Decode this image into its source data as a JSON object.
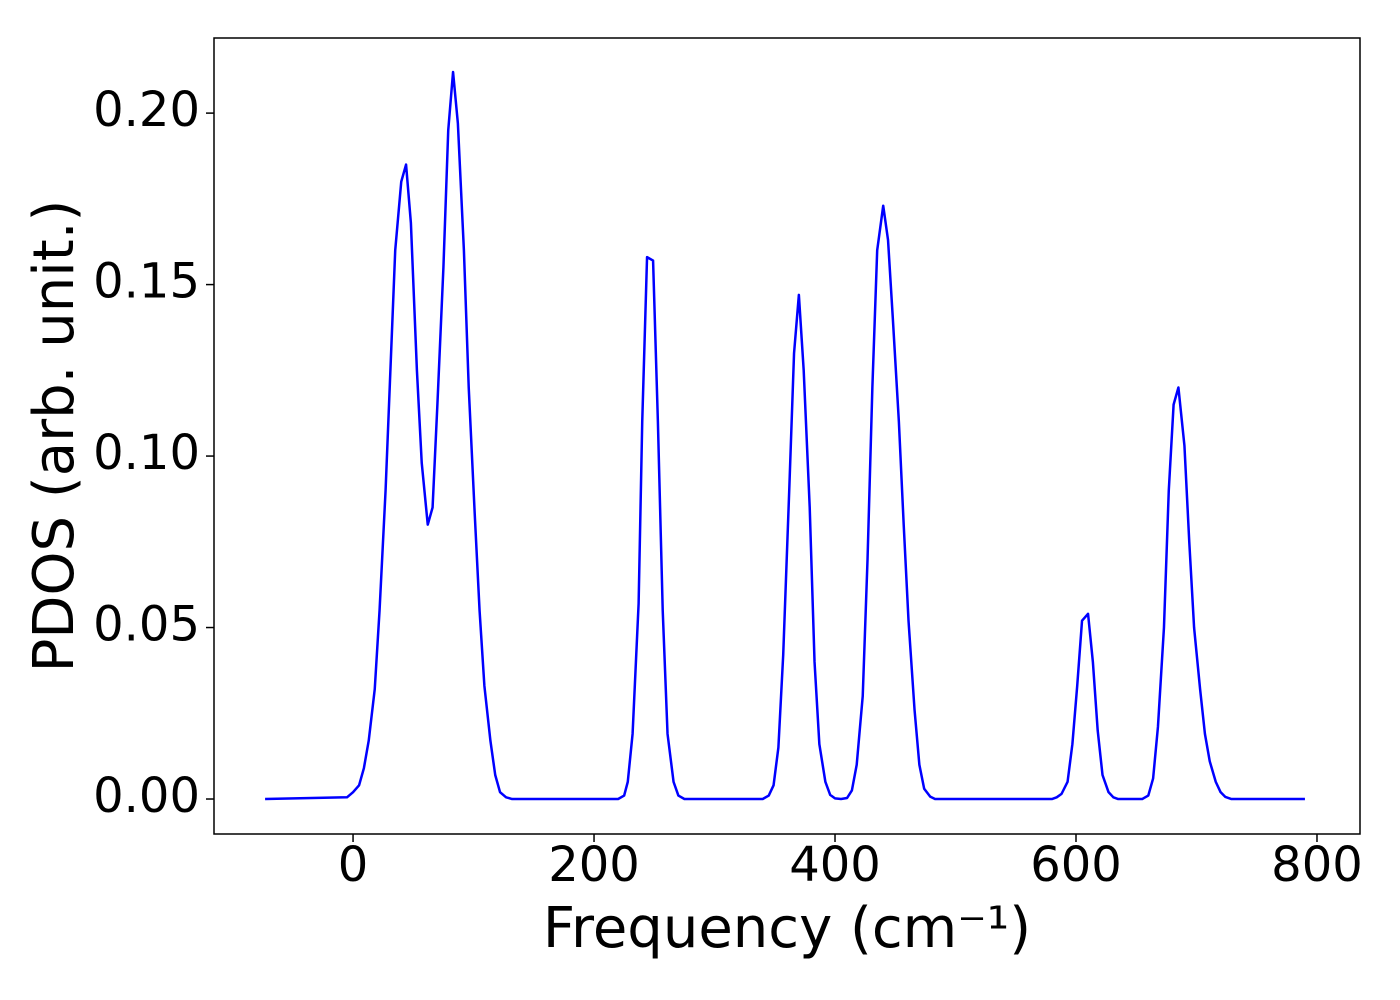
{
  "chart_data": {
    "type": "line",
    "xlabel": "Frequency (cm⁻¹)",
    "ylabel": "PDOS (arb. unit.)",
    "xlim": [
      -115.4,
      835.7
    ],
    "ylim": [
      -0.0102,
      0.2219
    ],
    "xticks": [
      0,
      200,
      400,
      600,
      800
    ],
    "yticks": [
      {
        "value": 0,
        "label": "0.00"
      },
      {
        "value": 0.05,
        "label": "0.05"
      },
      {
        "value": 0.1,
        "label": "0.10"
      },
      {
        "value": 0.15,
        "label": "0.15"
      },
      {
        "value": 0.2,
        "label": "0.20"
      }
    ],
    "x": [
      -73,
      -5,
      0,
      5,
      9,
      13,
      18,
      22,
      27,
      31,
      35,
      40,
      44,
      48,
      53,
      57,
      62,
      66,
      70,
      75,
      79,
      83,
      87,
      92,
      96,
      101,
      105,
      109,
      114,
      118,
      122,
      127,
      132,
      220,
      225,
      228,
      232,
      237,
      240,
      244,
      249,
      253,
      257,
      261,
      266,
      270,
      275,
      340,
      345,
      349,
      353,
      357,
      362,
      366,
      370,
      374,
      379,
      383,
      387,
      392,
      396,
      400,
      405,
      410,
      414,
      418,
      423,
      427,
      431,
      435,
      440,
      444,
      448,
      453,
      457,
      461,
      466,
      470,
      474,
      479,
      483,
      580,
      584,
      588,
      593,
      597,
      601,
      605,
      610,
      614,
      618,
      622,
      627,
      631,
      635,
      655,
      660,
      664,
      668,
      673,
      677,
      681,
      685,
      690,
      694,
      698,
      703,
      707,
      711,
      716,
      720,
      724,
      729,
      790
    ],
    "series": [
      {
        "color": "#0000ff",
        "values": [
          0,
          0.0005,
          0.002,
          0.004,
          0.009,
          0.017,
          0.032,
          0.055,
          0.09,
          0.125,
          0.16,
          0.18,
          0.185,
          0.168,
          0.125,
          0.098,
          0.08,
          0.085,
          0.115,
          0.155,
          0.195,
          0.212,
          0.197,
          0.16,
          0.12,
          0.083,
          0.055,
          0.033,
          0.017,
          0.007,
          0.002,
          0.0005,
          0,
          0,
          0.001,
          0.005,
          0.019,
          0.057,
          0.11,
          0.158,
          0.157,
          0.11,
          0.055,
          0.019,
          0.005,
          0.001,
          0,
          0,
          0.001,
          0.004,
          0.015,
          0.042,
          0.09,
          0.13,
          0.147,
          0.125,
          0.085,
          0.04,
          0.016,
          0.005,
          0.0012,
          0.0002,
          0,
          0.0003,
          0.0025,
          0.01,
          0.03,
          0.07,
          0.12,
          0.16,
          0.173,
          0.163,
          0.14,
          0.11,
          0.08,
          0.052,
          0.026,
          0.01,
          0.003,
          0.0007,
          0,
          0,
          0.0005,
          0.0015,
          0.005,
          0.016,
          0.033,
          0.052,
          0.054,
          0.04,
          0.02,
          0.007,
          0.002,
          0.0005,
          0,
          0,
          0.001,
          0.006,
          0.021,
          0.05,
          0.09,
          0.115,
          0.12,
          0.103,
          0.075,
          0.05,
          0.032,
          0.019,
          0.011,
          0.005,
          0.002,
          0.0006,
          0,
          0
        ]
      }
    ]
  }
}
